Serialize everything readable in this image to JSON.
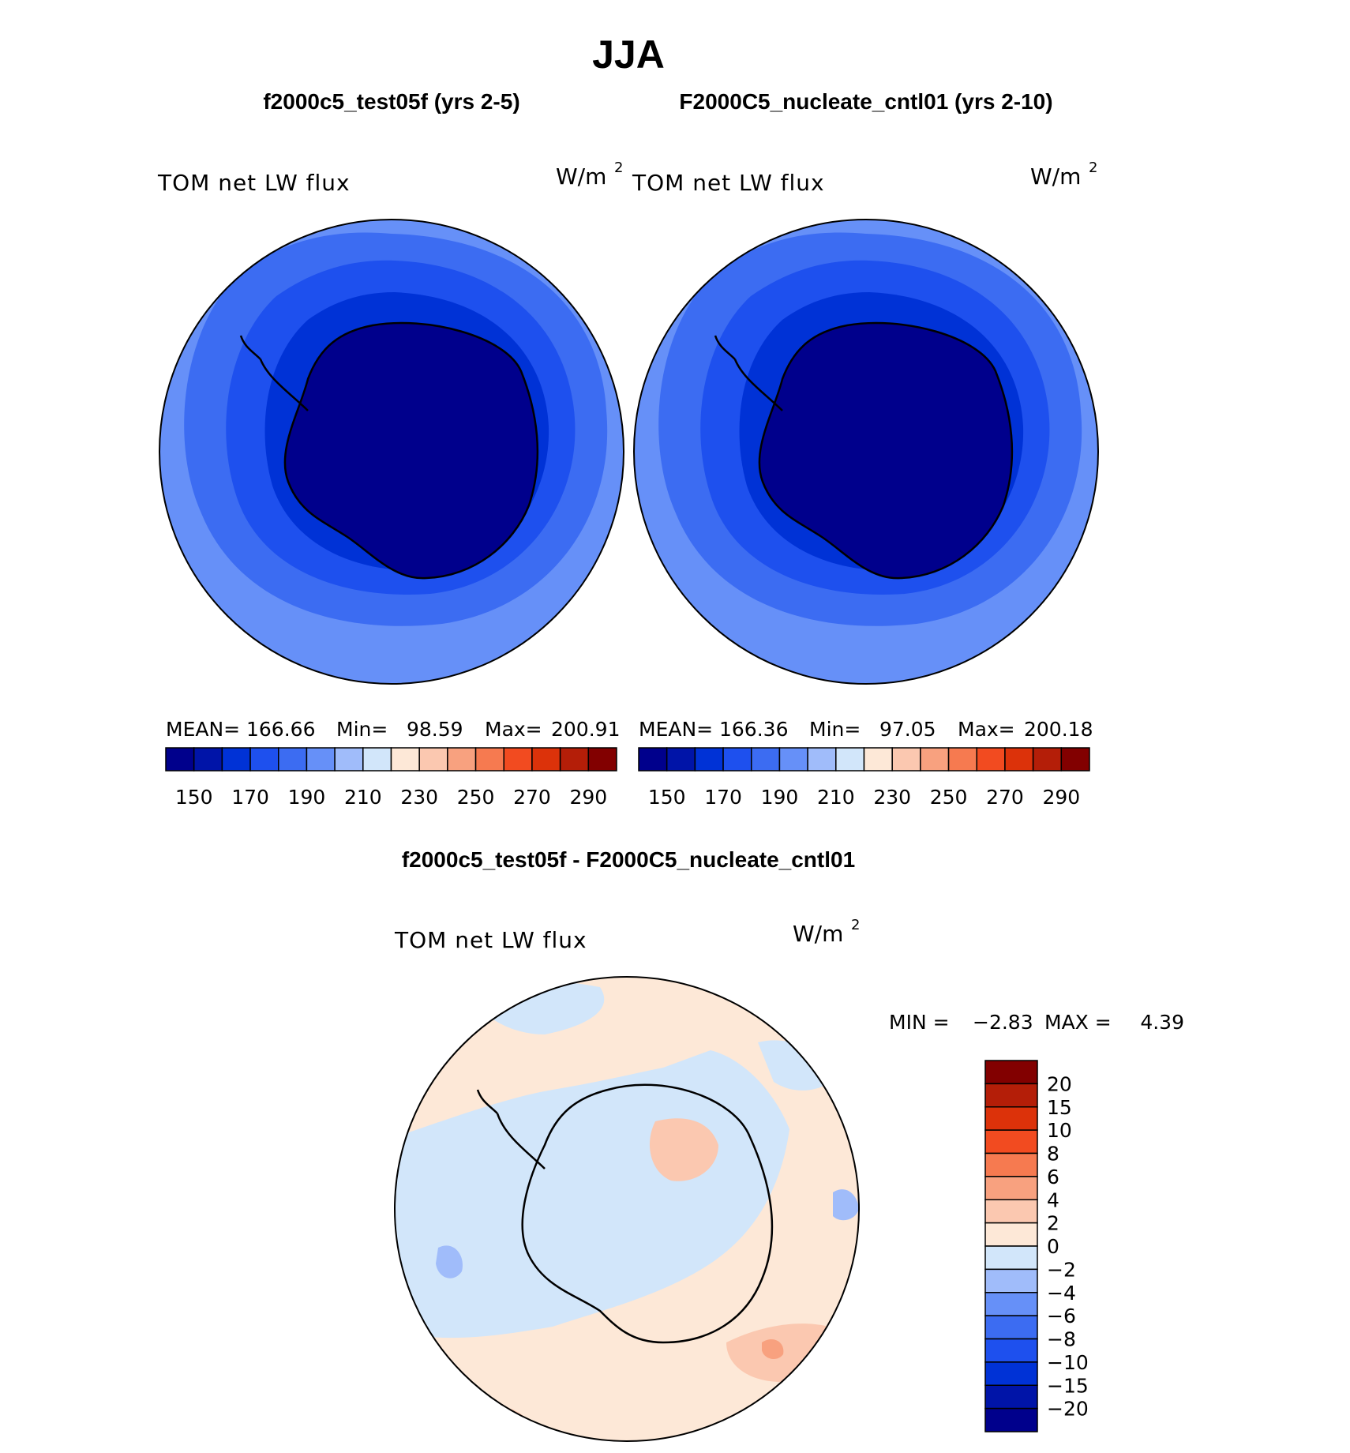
{
  "figure": {
    "title": "JJA",
    "panels": [
      {
        "id": "test",
        "header": "f2000c5_test05f (yrs 2-5)",
        "variable": "TOM net LW flux",
        "units": "W/m",
        "units_sup": "2",
        "stats": {
          "mean_label": "MEAN=",
          "mean": "166.66",
          "min_label": "Min=",
          "min": "98.59",
          "max_label": "Max=",
          "max": "200.91"
        }
      },
      {
        "id": "cntl",
        "header": "F2000C5_nucleate_cntl01 (yrs 2-10)",
        "variable": "TOM net LW flux",
        "units": "W/m",
        "units_sup": "2",
        "stats": {
          "mean_label": "MEAN=",
          "mean": "166.36",
          "min_label": "Min=",
          "min": "97.05",
          "max_label": "Max=",
          "max": "200.18"
        }
      }
    ],
    "diff": {
      "header": "f2000c5_test05f - F2000C5_nucleate_cntl01",
      "variable": "TOM net LW flux",
      "units": "W/m",
      "units_sup": "2",
      "stats": {
        "min_label": "MIN =",
        "min": "−2.83",
        "max_label": "MAX =",
        "max": "4.39"
      }
    },
    "abs_colorbar": {
      "colors": [
        "#00008c",
        "#0014a8",
        "#0032d6",
        "#1e50ee",
        "#3c6cf2",
        "#6690f8",
        "#a0bcfa",
        "#d2e6fa",
        "#fde8d7",
        "#fbc8b0",
        "#f8a17f",
        "#f67a50",
        "#f24b20",
        "#dc320a",
        "#b41e08",
        "#820000"
      ],
      "labels": [
        "150",
        "170",
        "190",
        "210",
        "230",
        "250",
        "270",
        "290"
      ]
    },
    "diff_colorbar": {
      "colors": [
        "#00008c",
        "#0014a8",
        "#0032d6",
        "#1e50ee",
        "#3c6cf2",
        "#6690f8",
        "#a0bcfa",
        "#d2e6fa",
        "#fde8d7",
        "#fbc8b0",
        "#f8a17f",
        "#f67a50",
        "#f24b20",
        "#dc320a",
        "#b41e08",
        "#820000"
      ],
      "labels": [
        "20",
        "15",
        "10",
        "8",
        "6",
        "4",
        "2",
        "0",
        "−2",
        "−4",
        "−6",
        "−8",
        "−10",
        "−15",
        "−20"
      ]
    },
    "map_colors": {
      "outer": "#6690f8",
      "band1": "#3c6cf2",
      "band2": "#1e50ee",
      "band3": "#0032d6",
      "band4": "#0014a8",
      "core": "#00008c",
      "diff_bg": "#fde8d7",
      "diff_neg": "#d2e6fa",
      "diff_neg2": "#a0bcfa",
      "diff_pos": "#fbc8b0",
      "diff_pos2": "#f8a17f"
    }
  }
}
